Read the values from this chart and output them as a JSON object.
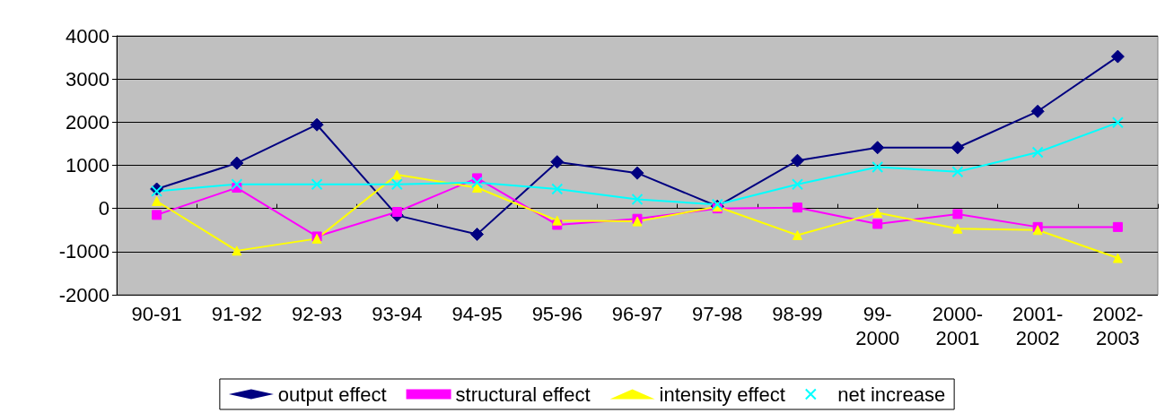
{
  "chart_data": {
    "type": "line",
    "categories": [
      "90-91",
      "91-92",
      "92-93",
      "93-94",
      "94-95",
      "95-96",
      "96-97",
      "97-98",
      "98-99",
      "99-2000",
      "2000-2001",
      "2001-2002",
      "2002-2003"
    ],
    "series": [
      {
        "name": "output effect",
        "color": "#000080",
        "marker": "diamond",
        "values": [
          450,
          1050,
          1940,
          -160,
          -600,
          1080,
          820,
          50,
          1110,
          1410,
          1410,
          2250,
          3520
        ]
      },
      {
        "name": "structural effect",
        "color": "#ff00ff",
        "marker": "square",
        "values": [
          -150,
          480,
          -650,
          -80,
          700,
          -380,
          -240,
          0,
          20,
          -360,
          -130,
          -430,
          -430
        ]
      },
      {
        "name": "intensity effect",
        "color": "#ffff00",
        "marker": "triangle",
        "values": [
          170,
          -980,
          -700,
          780,
          480,
          -280,
          -300,
          40,
          -620,
          -100,
          -470,
          -500,
          -1150
        ]
      },
      {
        "name": "net increase",
        "color": "#00ffff",
        "marker": "cross",
        "values": [
          400,
          560,
          560,
          560,
          600,
          450,
          210,
          90,
          560,
          960,
          850,
          1300,
          1990
        ]
      }
    ],
    "ylim": [
      -2000,
      4000
    ],
    "yticks": [
      -2000,
      -1000,
      0,
      1000,
      2000,
      3000,
      4000
    ],
    "grid": "y",
    "legend": "bottom",
    "line_style": "solid"
  }
}
